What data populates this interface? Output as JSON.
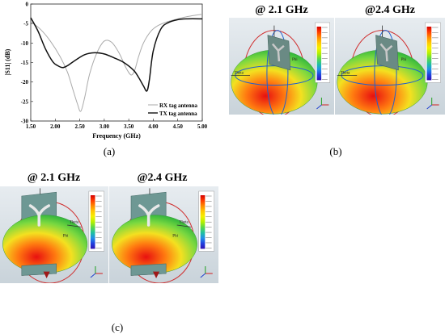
{
  "captions": {
    "a": "(a)",
    "b": "(b)",
    "c": "(c)"
  },
  "panel_titles": {
    "b_left": "@ 2.1 GHz",
    "b_right": "@2.4 GHz",
    "c_left": "@ 2.1 GHz",
    "c_right": "@2.4 GHz"
  },
  "chart_data": {
    "type": "line",
    "xlabel": "Frequency (GHz)",
    "ylabel": "|S11| (dB)",
    "xlim": [
      1.5,
      5.0
    ],
    "ylim": [
      -30,
      0
    ],
    "xticks": [
      "1.50",
      "2.00",
      "2.50",
      "3.00",
      "3.50",
      "4.00",
      "4.50",
      "5.00"
    ],
    "yticks": [
      "0",
      "-5",
      "-10",
      "-15",
      "-20",
      "-25",
      "-30"
    ],
    "grid": false,
    "legend_position": "bottom-right",
    "series": [
      {
        "name": "RX tag antenna",
        "color": "#aaaaaa",
        "x": [
          1.5,
          1.7,
          1.9,
          2.1,
          2.25,
          2.35,
          2.45,
          2.52,
          2.6,
          2.7,
          2.85,
          3.0,
          3.15,
          3.3,
          3.45,
          3.55,
          3.62,
          3.7,
          3.8,
          3.95,
          4.1,
          4.3,
          4.5,
          4.7,
          5.0
        ],
        "y": [
          -4.5,
          -6.5,
          -9.5,
          -13.5,
          -17.5,
          -21.5,
          -25.5,
          -27.5,
          -24.0,
          -18.0,
          -12.5,
          -9.5,
          -9.8,
          -12.5,
          -16.5,
          -18.2,
          -17.0,
          -13.5,
          -10.0,
          -7.0,
          -5.5,
          -4.5,
          -3.8,
          -3.2,
          -2.6
        ]
      },
      {
        "name": "TX tag antenna",
        "color": "#111111",
        "x": [
          1.5,
          1.65,
          1.8,
          1.95,
          2.05,
          2.15,
          2.25,
          2.4,
          2.6,
          2.8,
          3.0,
          3.2,
          3.4,
          3.6,
          3.7,
          3.8,
          3.87,
          3.92,
          4.0,
          4.15,
          4.3,
          4.5,
          4.7,
          5.0
        ],
        "y": [
          -3.5,
          -7.0,
          -11.5,
          -14.8,
          -15.8,
          -16.3,
          -15.8,
          -14.5,
          -13.0,
          -12.5,
          -12.8,
          -13.8,
          -15.0,
          -17.0,
          -18.8,
          -21.0,
          -22.3,
          -19.5,
          -12.0,
          -6.5,
          -4.8,
          -4.0,
          -3.8,
          -3.8
        ]
      }
    ]
  },
  "pattern_labels": {
    "phi": "Phi",
    "theta": "Theta"
  },
  "icons": {
    "pattern": "radiation-pattern-3d",
    "scale": "color-scale-legend",
    "axes": "xyz-axes-icon"
  }
}
